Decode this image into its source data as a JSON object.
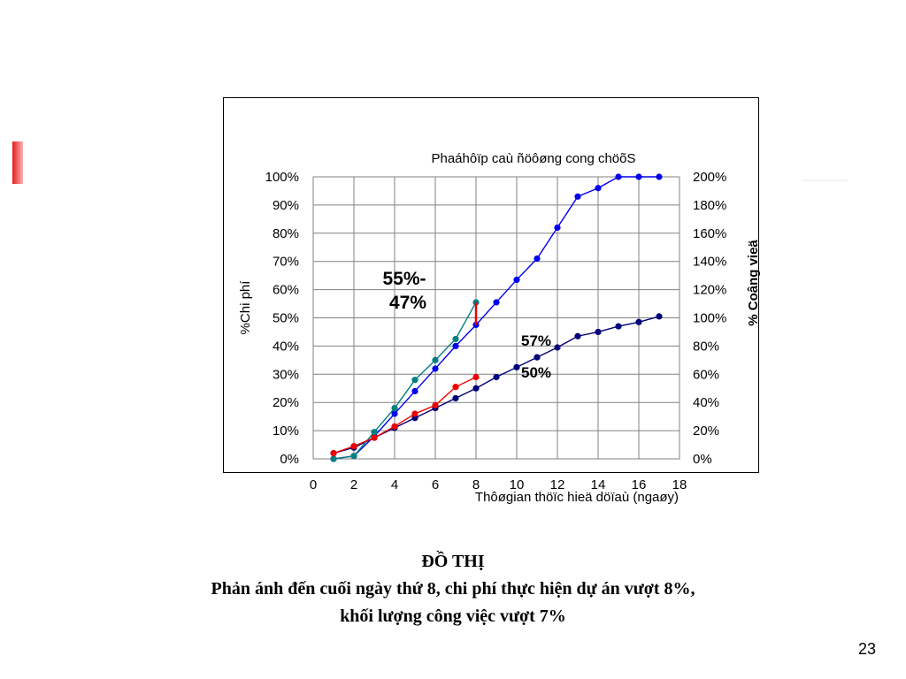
{
  "chart_data": {
    "type": "line",
    "title": "Phaáhôïp caù ñöôøng cong chöõS",
    "xlabel": "Thôøgian thöïc hieä döïaù (ngaøy)",
    "ylabel_left": "%Chi phí",
    "ylabel_right": "% Coâng vieä",
    "xlim": [
      0,
      18
    ],
    "ylim_left": [
      0,
      100
    ],
    "ylim_right": [
      0,
      200
    ],
    "x_ticks": [
      "0",
      "2",
      "4",
      "6",
      "8",
      "10",
      "12",
      "14",
      "16",
      "18"
    ],
    "y_ticks_left": [
      "0%",
      "10%",
      "20%",
      "30%",
      "40%",
      "50%",
      "60%",
      "70%",
      "80%",
      "90%",
      "100%"
    ],
    "y_ticks_right": [
      "0%",
      "20%",
      "40%",
      "60%",
      "80%",
      "100%",
      "120%",
      "140%",
      "160%",
      "180%",
      "200%"
    ],
    "grid": true,
    "series": [
      {
        "color": "#0000ee",
        "x": [
          1,
          2,
          3,
          4,
          5,
          6,
          7,
          8,
          9,
          10,
          11,
          12,
          13,
          14,
          15,
          16,
          17
        ],
        "y": [
          0,
          1,
          8,
          16,
          24,
          32,
          40,
          47.5,
          55.5,
          63.5,
          71,
          82,
          93,
          96,
          100,
          100,
          100
        ]
      },
      {
        "color": "#00007a",
        "x": [
          1,
          2,
          3,
          4,
          5,
          6,
          7,
          8,
          9,
          10,
          11,
          12,
          13,
          14,
          15,
          16,
          17
        ],
        "y": [
          2,
          4,
          7.5,
          11,
          14.5,
          18,
          21.5,
          25,
          29,
          32.5,
          36,
          39.5,
          43.5,
          45,
          47,
          48.5,
          50.5
        ]
      },
      {
        "color": "#008080",
        "x": [
          1,
          2,
          3,
          4,
          5,
          6,
          7,
          8
        ],
        "y": [
          0,
          1,
          9.5,
          18,
          28,
          35,
          42.5,
          55.5
        ]
      },
      {
        "color": "#ee0000",
        "x": [
          1,
          2,
          3,
          4,
          5,
          6,
          7,
          8
        ],
        "y": [
          2,
          4.5,
          7.5,
          11.5,
          16,
          19,
          25.5,
          29
        ]
      }
    ],
    "annotations": [
      {
        "text_line1": "55%-",
        "text_line2": "47%"
      },
      {
        "text": "57%"
      },
      {
        "text": "50%"
      }
    ]
  },
  "caption": {
    "title": "ĐỒ THỊ",
    "line1": "Phản ánh đến cuối ngày thứ 8, chi phí thực hiện dự án vượt 8%,",
    "line2": "khối lượng công việc vượt 7%"
  },
  "page_number": "23"
}
